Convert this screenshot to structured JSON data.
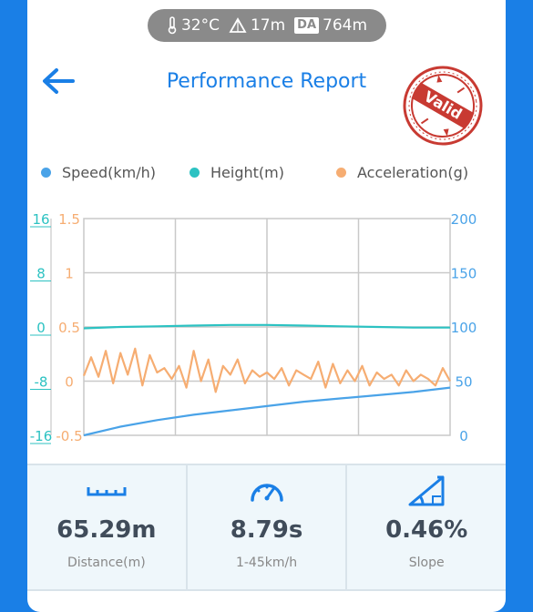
{
  "env": {
    "temperature": "32°C",
    "altitude": "17m",
    "da_badge": "DA",
    "density_altitude": "764m"
  },
  "header": {
    "title": "Performance Report",
    "stamp_text": "Valid"
  },
  "legend": [
    {
      "label": "Speed(km/h)",
      "color": "#4aa3e8"
    },
    {
      "label": "Height(m)",
      "color": "#2cc2c2"
    },
    {
      "label": "Acceleration(g)",
      "color": "#f6ad72"
    }
  ],
  "chart_data": {
    "type": "line",
    "grid": true,
    "axes": {
      "height": {
        "ticks": [
          "16",
          "8",
          "0",
          "-8",
          "-16"
        ],
        "range": [
          -16,
          16
        ],
        "color": "#2cc2c2"
      },
      "acceleration": {
        "ticks": [
          "1.5",
          "1",
          "0.5",
          "0",
          "-0.5"
        ],
        "range": [
          -0.5,
          1.5
        ],
        "color": "#f6ad72"
      },
      "speed": {
        "ticks": [
          "200",
          "150",
          "100",
          "50",
          "0"
        ],
        "range": [
          0,
          200
        ],
        "color": "#4aa3e8"
      }
    },
    "series": [
      {
        "name": "Speed(km/h)",
        "axis": "speed",
        "x": [
          0,
          0.1,
          0.2,
          0.3,
          0.4,
          0.5,
          0.6,
          0.7,
          0.8,
          0.9,
          1.0
        ],
        "y": [
          0,
          8,
          14,
          19,
          23,
          27,
          31,
          34,
          37,
          40,
          44
        ]
      },
      {
        "name": "Height(m)",
        "axis": "height",
        "x": [
          0,
          0.1,
          0.2,
          0.3,
          0.4,
          0.5,
          0.6,
          0.7,
          0.8,
          0.9,
          1.0
        ],
        "y": [
          -0.2,
          0.0,
          0.1,
          0.2,
          0.3,
          0.3,
          0.2,
          0.1,
          0.0,
          -0.1,
          -0.1
        ]
      },
      {
        "name": "Acceleration(g)",
        "axis": "acceleration",
        "x": [
          0,
          0.02,
          0.04,
          0.06,
          0.08,
          0.1,
          0.12,
          0.14,
          0.16,
          0.18,
          0.2,
          0.22,
          0.24,
          0.26,
          0.28,
          0.3,
          0.32,
          0.34,
          0.36,
          0.38,
          0.4,
          0.42,
          0.44,
          0.46,
          0.48,
          0.5,
          0.52,
          0.54,
          0.56,
          0.58,
          0.6,
          0.62,
          0.64,
          0.66,
          0.68,
          0.7,
          0.72,
          0.74,
          0.76,
          0.78,
          0.8,
          0.82,
          0.84,
          0.86,
          0.88,
          0.9,
          0.92,
          0.94,
          0.96,
          0.98,
          1.0
        ],
        "y": [
          0.05,
          0.22,
          0.04,
          0.28,
          -0.02,
          0.26,
          0.06,
          0.3,
          -0.04,
          0.24,
          0.08,
          0.12,
          0.02,
          0.14,
          -0.06,
          0.28,
          0.0,
          0.2,
          -0.1,
          0.14,
          0.06,
          0.2,
          -0.02,
          0.1,
          0.04,
          0.08,
          0.02,
          0.12,
          -0.04,
          0.1,
          0.06,
          0.02,
          0.18,
          -0.06,
          0.16,
          -0.02,
          0.1,
          0.0,
          0.14,
          -0.04,
          0.08,
          0.02,
          0.06,
          -0.04,
          0.1,
          0.0,
          0.06,
          0.02,
          -0.04,
          0.12,
          0.0
        ]
      }
    ]
  },
  "stats": [
    {
      "icon": "ruler-icon",
      "value": "65.29m",
      "label": "Distance(m)"
    },
    {
      "icon": "speedometer-icon",
      "value": "8.79s",
      "label": "1-45km/h"
    },
    {
      "icon": "slope-icon",
      "value": "0.46%",
      "label": "Slope"
    }
  ]
}
